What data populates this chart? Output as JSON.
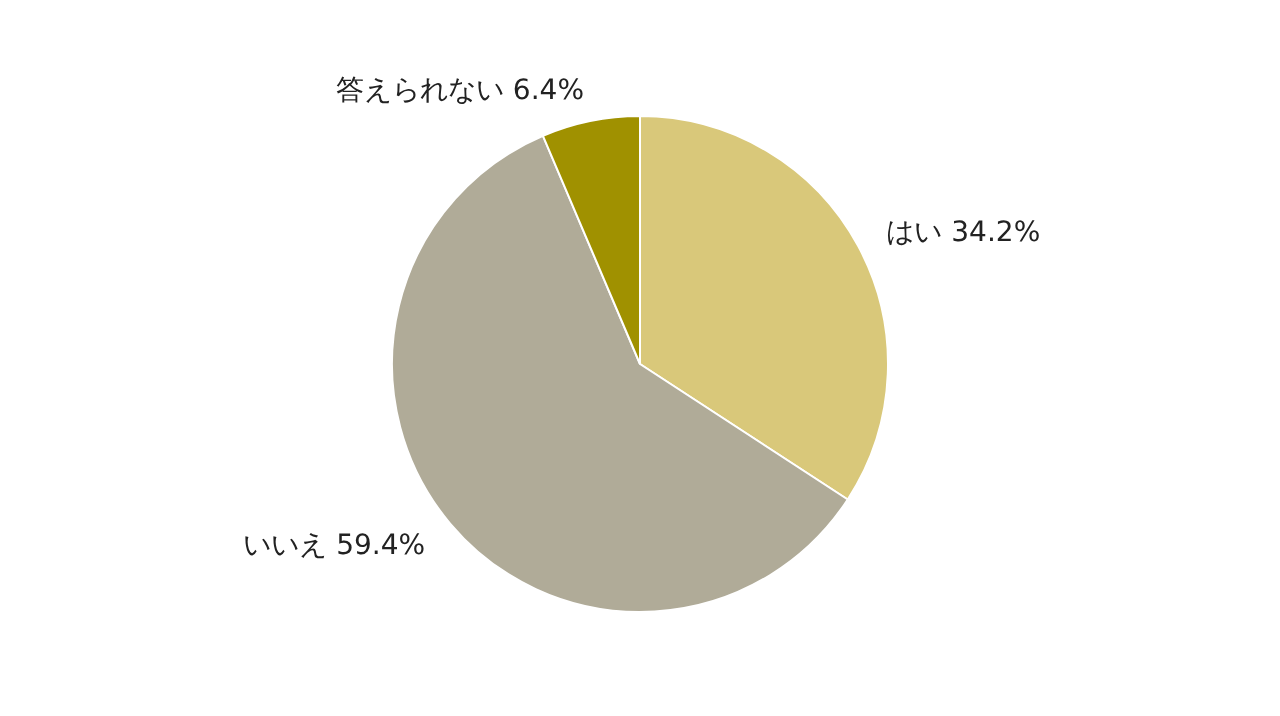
{
  "chart_data": {
    "type": "pie",
    "categories": [
      "はい",
      "いいえ",
      "答えられない"
    ],
    "values": [
      34.2,
      59.4,
      6.4
    ],
    "value_labels": [
      "34.2%",
      "59.4%",
      "6.4%"
    ],
    "colors": [
      "#d9c87a",
      "#b0ab98",
      "#a09100"
    ]
  }
}
